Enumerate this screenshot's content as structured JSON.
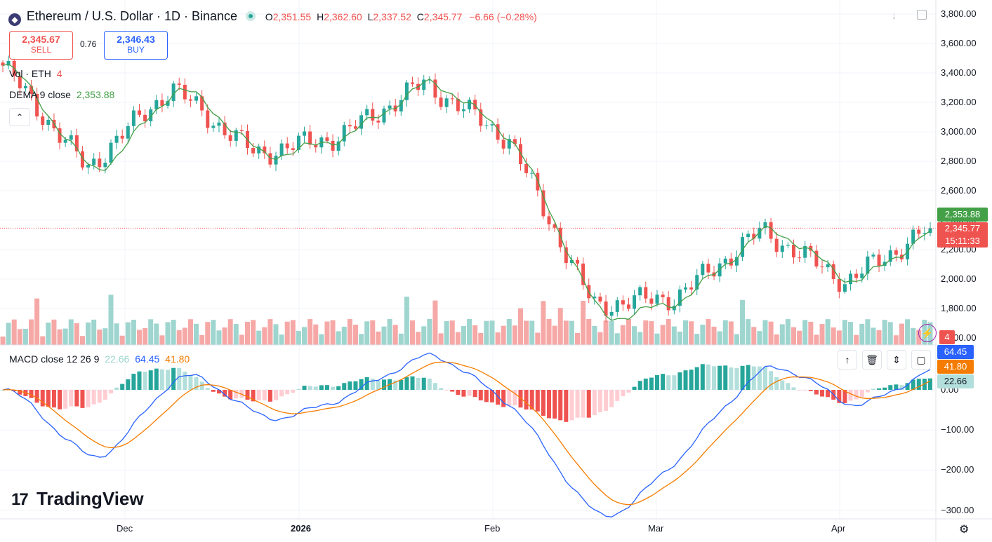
{
  "header": {
    "symbol_title": "Ethereum / U.S. Dollar · 1D · Binance",
    "o_label": "O",
    "o_value": "2,351.55",
    "h_label": "H",
    "h_value": "2,362.60",
    "l_label": "L",
    "l_value": "2,337.52",
    "c_label": "C",
    "c_value": "2,345.77",
    "change": "−6.66 (−0.28%)"
  },
  "trade": {
    "sell_price": "2,345.67",
    "sell_label": "SELL",
    "spread": "0.76",
    "buy_price": "2,346.43",
    "buy_label": "BUY"
  },
  "indicators": {
    "vol_label": "Vol · ETH",
    "vol_value": "4",
    "dema_label": "DEMA 9 close",
    "dema_value": "2,353.88",
    "macd_label": "MACD close 12 26 9",
    "macd_hist": "22.66",
    "macd_line": "64.45",
    "macd_signal": "41.80"
  },
  "price_tags": {
    "dema": "2,353.88",
    "last": "2,345.77",
    "countdown": "15:11:33",
    "volume": "4",
    "macd_line": "64.45",
    "macd_signal": "41.80",
    "macd_hist": "22.66"
  },
  "logo_text": "TradingView",
  "colors": {
    "up": "#26a69a",
    "down": "#ef5350",
    "dema": "#43a047",
    "macd": "#2962ff",
    "signal": "#f57c00",
    "volume_up": "#9ed5cf",
    "volume_down": "#f5a8a6"
  },
  "chart_data": {
    "type": "candlestick",
    "price_axis": {
      "labels": [
        "3,800.00",
        "3,600.00",
        "3,400.00",
        "3,200.00",
        "3,000.00",
        "2,800.00",
        "2,600.00",
        "2,400.00",
        "2,200.00",
        "2,000.00",
        "1,800.00",
        "1,600.00"
      ],
      "range": [
        1550,
        3850
      ]
    },
    "macd_axis": {
      "labels": [
        "0.00",
        "−100.00",
        "−200.00",
        "−300.00"
      ],
      "range": [
        -310,
        90
      ]
    },
    "time_axis": {
      "labels": [
        "Dec",
        "2026",
        "Feb",
        "Mar",
        "Apr"
      ]
    },
    "key_points": [
      {
        "date": "Nov 7",
        "close": 3450
      },
      {
        "date": "Nov 22",
        "close": 2750
      },
      {
        "date": "Dec 10",
        "close": 3300
      },
      {
        "date": "Dec 18",
        "close": 2850
      },
      {
        "date": "Jan 1",
        "close": 2970
      },
      {
        "date": "Jan 14",
        "close": 3330
      },
      {
        "date": "Jan 20",
        "close": 2950
      },
      {
        "date": "Feb 5",
        "close": 1820
      },
      {
        "date": "Feb 24",
        "close": 1880
      },
      {
        "date": "Mar 15",
        "close": 2330
      },
      {
        "date": "Mar 30",
        "close": 1980
      },
      {
        "date": "Apr 14",
        "close": 2345.77
      }
    ]
  }
}
